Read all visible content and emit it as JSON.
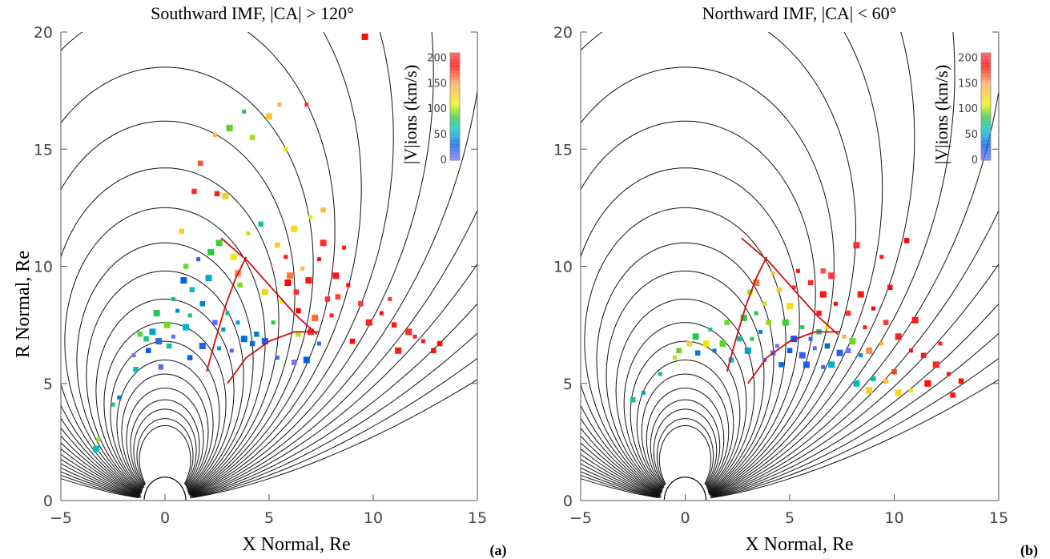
{
  "chart_data": [
    {
      "type": "scatter",
      "panel_label": "(a)",
      "title": "Southward IMF, |CA| > 120°",
      "xlabel": "X Normal, Re",
      "ylabel": "R Normal, Re",
      "xlim": [
        -5,
        15
      ],
      "ylim": [
        0,
        20
      ],
      "xticks": [
        "−5",
        "0",
        "5",
        "10",
        "15"
      ],
      "yticks": [
        "0",
        "5",
        "10",
        "15",
        "20"
      ],
      "colorbar": {
        "label": "|V|ions (km/s)",
        "range": [
          0,
          200
        ],
        "ticks": [
          "0",
          "50",
          "100",
          "150",
          "200"
        ]
      },
      "groups": [
        {
          "name": "blue",
          "vmin": 0,
          "vmax": 40,
          "points": [
            [
              -1.5,
              6.2
            ],
            [
              -0.8,
              6.4
            ],
            [
              -0.3,
              6.8
            ],
            [
              0.4,
              7.0
            ],
            [
              1.2,
              6.1
            ],
            [
              1.8,
              6.6
            ],
            [
              3.2,
              6.4
            ],
            [
              4.2,
              6.7
            ],
            [
              4.8,
              6.8
            ],
            [
              5.4,
              6.1
            ],
            [
              6.2,
              5.9
            ],
            [
              6.8,
              6.0
            ],
            [
              7.4,
              6.7
            ],
            [
              2.4,
              7.6
            ],
            [
              0.9,
              9.4
            ],
            [
              1.6,
              10.3
            ],
            [
              -0.2,
              5.7
            ],
            [
              3.8,
              6.9
            ]
          ]
        },
        {
          "name": "cyan",
          "vmin": 40,
          "vmax": 70,
          "points": [
            [
              -2.2,
              4.4
            ],
            [
              -1.4,
              5.6
            ],
            [
              -0.6,
              7.2
            ],
            [
              0.6,
              8.1
            ],
            [
              1.3,
              9.0
            ],
            [
              2.1,
              9.5
            ],
            [
              2.8,
              7.3
            ],
            [
              0.2,
              6.6
            ],
            [
              1.0,
              7.4
            ],
            [
              2.6,
              6.5
            ],
            [
              4.4,
              7.1
            ],
            [
              -3.3,
              2.2
            ],
            [
              3.5,
              7.6
            ],
            [
              1.8,
              8.4
            ]
          ]
        },
        {
          "name": "green",
          "vmin": 70,
          "vmax": 100,
          "points": [
            [
              -2.5,
              4.1
            ],
            [
              -1.2,
              7.1
            ],
            [
              -0.4,
              8.0
            ],
            [
              0.4,
              8.6
            ],
            [
              1.0,
              10.0
            ],
            [
              2.2,
              10.6
            ],
            [
              3.0,
              8.0
            ],
            [
              3.6,
              9.2
            ],
            [
              2.6,
              11.0
            ],
            [
              1.2,
              7.9
            ],
            [
              4.6,
              11.8
            ],
            [
              3.1,
              15.9
            ],
            [
              3.8,
              16.6
            ],
            [
              -0.9,
              6.9
            ],
            [
              0.1,
              7.5
            ],
            [
              5.2,
              7.6
            ]
          ]
        },
        {
          "name": "yellow",
          "vmin": 100,
          "vmax": 140,
          "points": [
            [
              -3.2,
              2.6
            ],
            [
              0.8,
              11.5
            ],
            [
              3.3,
              10.4
            ],
            [
              4.0,
              11.4
            ],
            [
              5.4,
              10.9
            ],
            [
              6.2,
              11.6
            ],
            [
              7.0,
              12.1
            ],
            [
              7.6,
              12.4
            ],
            [
              4.8,
              8.9
            ],
            [
              5.6,
              8.5
            ],
            [
              4.2,
              15.5
            ],
            [
              2.9,
              13.0
            ],
            [
              5.8,
              15.0
            ],
            [
              6.4,
              7.1
            ],
            [
              5.0,
              16.4
            ]
          ]
        },
        {
          "name": "orange",
          "vmin": 140,
          "vmax": 180,
          "points": [
            [
              2.4,
              15.6
            ],
            [
              1.7,
              14.4
            ],
            [
              3.5,
              9.7
            ],
            [
              6.6,
              9.9
            ],
            [
              8.3,
              8.7
            ],
            [
              6.0,
              9.6
            ],
            [
              5.5,
              16.9
            ],
            [
              1.4,
              13.2
            ],
            [
              7.2,
              7.8
            ]
          ]
        },
        {
          "name": "red",
          "vmin": 180,
          "vmax": 210,
          "points": [
            [
              5.8,
              10.4
            ],
            [
              6.3,
              8.9
            ],
            [
              6.9,
              9.4
            ],
            [
              7.4,
              10.3
            ],
            [
              7.8,
              8.6
            ],
            [
              8.2,
              9.6
            ],
            [
              8.8,
              9.2
            ],
            [
              9.4,
              8.4
            ],
            [
              9.8,
              7.6
            ],
            [
              10.4,
              8.0
            ],
            [
              11.0,
              7.5
            ],
            [
              11.7,
              7.2
            ],
            [
              12.4,
              6.8
            ],
            [
              13.2,
              6.7
            ],
            [
              7.6,
              11.0
            ],
            [
              8.6,
              10.8
            ],
            [
              6.4,
              8.1
            ],
            [
              7.0,
              7.2
            ],
            [
              8.0,
              7.9
            ],
            [
              9.0,
              6.8
            ],
            [
              11.2,
              6.4
            ],
            [
              12.0,
              7.0
            ],
            [
              12.9,
              6.4
            ],
            [
              9.6,
              19.8
            ],
            [
              6.8,
              16.9
            ],
            [
              2.5,
              13.1
            ],
            [
              5.9,
              9.3
            ],
            [
              10.8,
              8.6
            ]
          ]
        }
      ]
    },
    {
      "type": "scatter",
      "panel_label": "(b)",
      "title": "Northward IMF, |CA| < 60°",
      "xlabel": "X Normal, Re",
      "ylabel": "",
      "xlim": [
        -5,
        15
      ],
      "ylim": [
        0,
        20
      ],
      "xticks": [
        "−5",
        "0",
        "5",
        "10",
        "15"
      ],
      "yticks": [
        "0",
        "5",
        "10",
        "15",
        "20"
      ],
      "colorbar": {
        "label": "|V|ions (km/s)",
        "range": [
          0,
          200
        ],
        "ticks": [
          "0",
          "50",
          "100",
          "150",
          "200"
        ]
      },
      "groups": [
        {
          "name": "blue",
          "vmin": 0,
          "vmax": 40,
          "points": [
            [
              4.4,
              6.6
            ],
            [
              5.0,
              6.4
            ],
            [
              5.6,
              6.2
            ],
            [
              6.2,
              6.5
            ],
            [
              6.8,
              6.6
            ],
            [
              7.4,
              6.3
            ],
            [
              3.8,
              6.0
            ],
            [
              4.6,
              5.8
            ],
            [
              5.8,
              5.8
            ],
            [
              6.6,
              5.7
            ],
            [
              7.8,
              6.4
            ],
            [
              5.2,
              6.9
            ],
            [
              6.0,
              6.9
            ],
            [
              4.2,
              6.3
            ]
          ]
        },
        {
          "name": "cyan",
          "vmin": 40,
          "vmax": 70,
          "points": [
            [
              1.4,
              6.4
            ],
            [
              2.2,
              6.0
            ],
            [
              3.0,
              6.4
            ],
            [
              3.6,
              7.2
            ],
            [
              2.6,
              6.9
            ],
            [
              7.0,
              5.8
            ],
            [
              8.4,
              6.2
            ],
            [
              9.0,
              5.2
            ],
            [
              8.2,
              5.0
            ],
            [
              -2.0,
              4.6
            ],
            [
              0.6,
              6.3
            ]
          ]
        },
        {
          "name": "green",
          "vmin": 70,
          "vmax": 100,
          "points": [
            [
              -1.2,
              5.4
            ],
            [
              -0.3,
              6.4
            ],
            [
              0.5,
              7.0
            ],
            [
              1.2,
              7.3
            ],
            [
              2.0,
              7.6
            ],
            [
              2.8,
              7.8
            ],
            [
              3.4,
              8.0
            ],
            [
              4.0,
              7.6
            ],
            [
              4.8,
              7.6
            ],
            [
              5.6,
              7.4
            ],
            [
              6.4,
              7.2
            ],
            [
              1.8,
              6.7
            ],
            [
              3.2,
              6.9
            ],
            [
              -2.5,
              4.3
            ],
            [
              8.0,
              6.8
            ]
          ]
        },
        {
          "name": "yellow",
          "vmin": 100,
          "vmax": 140,
          "points": [
            [
              -0.5,
              6.1
            ],
            [
              0.2,
              6.7
            ],
            [
              1.0,
              6.7
            ],
            [
              3.8,
              8.4
            ],
            [
              4.5,
              9.0
            ],
            [
              5.0,
              8.3
            ],
            [
              6.8,
              7.4
            ],
            [
              9.6,
              5.1
            ],
            [
              10.2,
              4.6
            ],
            [
              10.8,
              4.7
            ],
            [
              3.1,
              8.9
            ],
            [
              8.8,
              4.7
            ]
          ]
        },
        {
          "name": "orange",
          "vmin": 140,
          "vmax": 180,
          "points": [
            [
              4.2,
              9.7
            ],
            [
              6.6,
              9.8
            ],
            [
              8.8,
              6.4
            ],
            [
              9.4,
              6.7
            ],
            [
              10.0,
              5.5
            ],
            [
              3.4,
              9.3
            ],
            [
              7.6,
              7.0
            ]
          ]
        },
        {
          "name": "red",
          "vmin": 180,
          "vmax": 210,
          "points": [
            [
              5.4,
              9.8
            ],
            [
              6.0,
              9.3
            ],
            [
              6.6,
              8.8
            ],
            [
              7.2,
              8.4
            ],
            [
              7.8,
              8.0
            ],
            [
              8.4,
              8.8
            ],
            [
              9.0,
              8.2
            ],
            [
              9.6,
              7.6
            ],
            [
              10.2,
              7.0
            ],
            [
              10.8,
              6.4
            ],
            [
              11.4,
              6.2
            ],
            [
              12.0,
              5.8
            ],
            [
              12.6,
              5.4
            ],
            [
              13.2,
              5.1
            ],
            [
              8.2,
              10.9
            ],
            [
              9.4,
              10.4
            ],
            [
              10.6,
              11.1
            ],
            [
              7.0,
              9.6
            ],
            [
              8.6,
              7.4
            ],
            [
              9.8,
              9.1
            ],
            [
              11.0,
              7.7
            ],
            [
              12.2,
              6.7
            ],
            [
              12.8,
              4.5
            ],
            [
              11.6,
              5.0
            ],
            [
              5.2,
              9.1
            ],
            [
              6.4,
              8.0
            ]
          ]
        }
      ]
    }
  ]
}
